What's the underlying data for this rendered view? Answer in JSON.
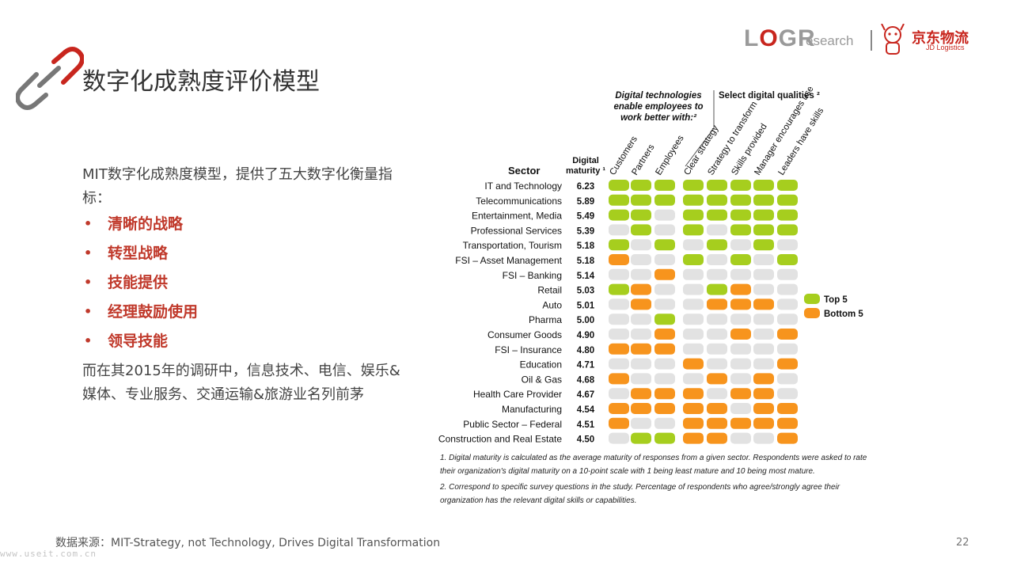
{
  "slide": {
    "title": "数字化成熟度评价模型",
    "intro": "MIT数字化成熟度模型，提供了五大数字化衡量指标：",
    "bullets": [
      "清晰的战略",
      "转型战略",
      "技能提供",
      "经理鼓励使用",
      "领导技能"
    ],
    "conclusion": "而在其2015年的调研中，信息技术、电信、娱乐&媒体、专业服务、交通运输&旅游业名列前茅",
    "source": "数据来源：MIT-Strategy, not Technology, Drives Digital Transformation",
    "page_number": "22",
    "watermark": "www.useit.com.cn"
  },
  "logo": {
    "log": "LOGR",
    "research": "esearch",
    "jd_cn": "京东物流",
    "jd_en": "JD Logistics",
    "accent": "#c8261e"
  },
  "icons": {
    "title_icon": "chain-link-icon",
    "jd_mascot": "dog-mascot-icon"
  },
  "chart_data": {
    "type": "table",
    "header_group_1": [
      "Digital technologies",
      "enable employees to",
      "work better with:²"
    ],
    "header_group_2": "Select digital qualities ²",
    "sector_header": "Sector",
    "maturity_header": [
      "Digital",
      "maturity ¹"
    ],
    "columns": [
      "Customers",
      "Partners",
      "Employees",
      "Clear strategy",
      "Strategy to transform",
      "Skills provided",
      "Manager encourages use",
      "Leaders have skills"
    ],
    "legend": [
      {
        "label": "Top 5",
        "color": "#a6ce1e"
      },
      {
        "label": "Bottom 5",
        "color": "#f7941d"
      }
    ],
    "neutral_color": "#e2e2e2",
    "rows": [
      {
        "sector": "IT and Technology",
        "maturity": "6.23",
        "cells": [
          "T",
          "T",
          "T",
          "T",
          "T",
          "T",
          "T",
          "T"
        ]
      },
      {
        "sector": "Telecommunications",
        "maturity": "5.89",
        "cells": [
          "T",
          "T",
          "T",
          "T",
          "T",
          "T",
          "T",
          "T"
        ]
      },
      {
        "sector": "Entertainment, Media",
        "maturity": "5.49",
        "cells": [
          "T",
          "T",
          "N",
          "T",
          "T",
          "T",
          "T",
          "T"
        ]
      },
      {
        "sector": "Professional Services",
        "maturity": "5.39",
        "cells": [
          "N",
          "T",
          "N",
          "T",
          "N",
          "T",
          "T",
          "T"
        ]
      },
      {
        "sector": "Transportation, Tourism",
        "maturity": "5.18",
        "cells": [
          "T",
          "N",
          "T",
          "N",
          "T",
          "N",
          "T",
          "N"
        ]
      },
      {
        "sector": "FSI – Asset Management",
        "maturity": "5.18",
        "cells": [
          "B",
          "N",
          "N",
          "T",
          "N",
          "T",
          "N",
          "T"
        ]
      },
      {
        "sector": "FSI – Banking",
        "maturity": "5.14",
        "cells": [
          "N",
          "N",
          "B",
          "N",
          "N",
          "N",
          "N",
          "N"
        ]
      },
      {
        "sector": "Retail",
        "maturity": "5.03",
        "cells": [
          "T",
          "B",
          "N",
          "N",
          "T",
          "B",
          "N",
          "N"
        ]
      },
      {
        "sector": "Auto",
        "maturity": "5.01",
        "cells": [
          "N",
          "B",
          "N",
          "N",
          "B",
          "B",
          "B",
          "N"
        ]
      },
      {
        "sector": "Pharma",
        "maturity": "5.00",
        "cells": [
          "N",
          "N",
          "T",
          "N",
          "N",
          "N",
          "N",
          "N"
        ]
      },
      {
        "sector": "Consumer Goods",
        "maturity": "4.90",
        "cells": [
          "N",
          "N",
          "B",
          "N",
          "N",
          "B",
          "N",
          "B"
        ]
      },
      {
        "sector": "FSI – Insurance",
        "maturity": "4.80",
        "cells": [
          "B",
          "B",
          "B",
          "N",
          "N",
          "N",
          "N",
          "N"
        ]
      },
      {
        "sector": "Education",
        "maturity": "4.71",
        "cells": [
          "N",
          "N",
          "N",
          "B",
          "N",
          "N",
          "N",
          "B"
        ]
      },
      {
        "sector": "Oil & Gas",
        "maturity": "4.68",
        "cells": [
          "B",
          "N",
          "N",
          "N",
          "B",
          "N",
          "B",
          "N"
        ]
      },
      {
        "sector": "Health Care Provider",
        "maturity": "4.67",
        "cells": [
          "N",
          "B",
          "B",
          "B",
          "N",
          "B",
          "B",
          "N"
        ]
      },
      {
        "sector": "Manufacturing",
        "maturity": "4.54",
        "cells": [
          "B",
          "B",
          "B",
          "B",
          "B",
          "N",
          "B",
          "B"
        ]
      },
      {
        "sector": "Public Sector – Federal",
        "maturity": "4.51",
        "cells": [
          "B",
          "N",
          "N",
          "B",
          "B",
          "B",
          "B",
          "B"
        ]
      },
      {
        "sector": "Construction and Real Estate",
        "maturity": "4.50",
        "cells": [
          "N",
          "T",
          "T",
          "B",
          "B",
          "N",
          "N",
          "B"
        ]
      }
    ],
    "footnotes": [
      "1. Digital maturity is calculated as the average maturity of responses from a given sector. Respondents were asked to rate their organization's digital maturity on a 10-point scale with 1 being least mature and 10 being most mature.",
      "2. Correspond to specific survey questions in the study. Percentage of respondents who agree/strongly agree their organization has the relevant digital skills or capabilities."
    ]
  }
}
